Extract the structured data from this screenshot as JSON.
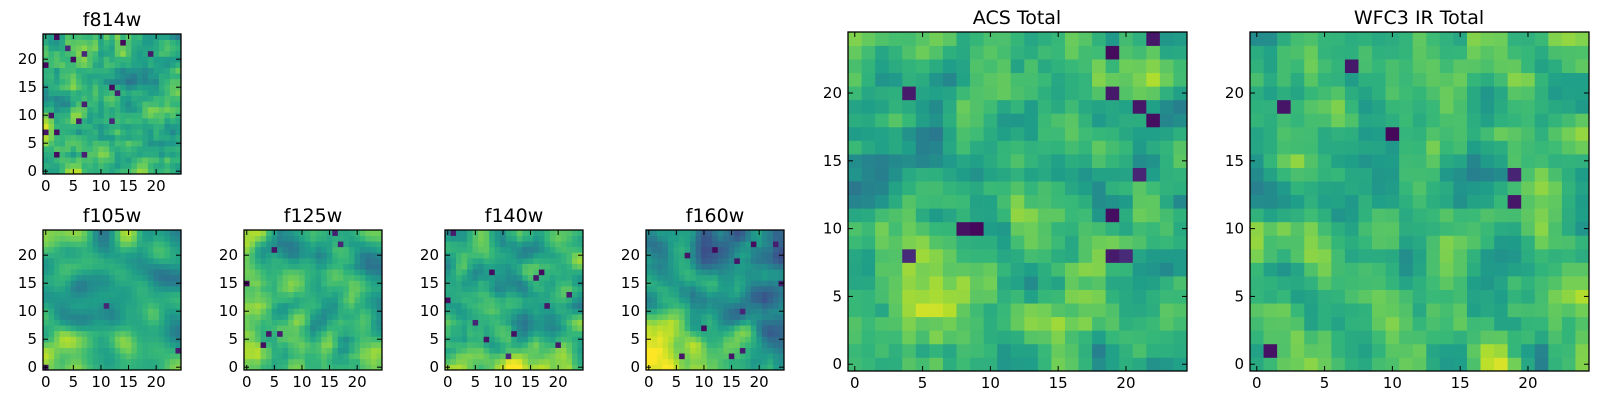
{
  "chart_data": [
    {
      "type": "heatmap",
      "id": "f814w",
      "title": "f814w",
      "x_ticks": [
        "0",
        "5",
        "10",
        "15",
        "20"
      ],
      "y_ticks": [
        "0",
        "5",
        "10",
        "15",
        "20"
      ],
      "xlim": [
        -0.5,
        24.5
      ],
      "ylim": [
        -0.5,
        24.5
      ],
      "grid_size": 25,
      "colormap": "viridis",
      "seed": 11,
      "smoothing": 0.25,
      "bottom_left_glow": 0.25,
      "dark_cells": 0.04
    },
    {
      "type": "heatmap",
      "id": "f105w",
      "title": "f105w",
      "x_ticks": [
        "0",
        "5",
        "10",
        "15",
        "20"
      ],
      "y_ticks": [
        "0",
        "5",
        "10",
        "15",
        "20"
      ],
      "xlim": [
        -0.5,
        24.5
      ],
      "ylim": [
        -0.5,
        24.5
      ],
      "grid_size": 25,
      "colormap": "viridis",
      "seed": 23,
      "smoothing": 0.75,
      "bottom_left_glow": 0.4,
      "dark_cells": 0.004
    },
    {
      "type": "heatmap",
      "id": "f125w",
      "title": "f125w",
      "x_ticks": [
        "0",
        "5",
        "10",
        "15",
        "20"
      ],
      "y_ticks": [
        "0",
        "5",
        "10",
        "15",
        "20"
      ],
      "xlim": [
        -0.5,
        24.5
      ],
      "ylim": [
        -0.5,
        24.5
      ],
      "grid_size": 25,
      "colormap": "viridis",
      "seed": 37,
      "smoothing": 0.6,
      "bottom_left_glow": 0.3,
      "dark_cells": 0.01
    },
    {
      "type": "heatmap",
      "id": "f140w",
      "title": "f140w",
      "x_ticks": [
        "0",
        "5",
        "10",
        "15",
        "20"
      ],
      "y_ticks": [
        "0",
        "5",
        "10",
        "15",
        "20"
      ],
      "xlim": [
        -0.5,
        24.5
      ],
      "ylim": [
        -0.5,
        24.5
      ],
      "grid_size": 25,
      "colormap": "viridis",
      "seed": 41,
      "smoothing": 0.55,
      "bottom_left_glow": 0.4,
      "dark_cells": 0.015
    },
    {
      "type": "heatmap",
      "id": "f160w",
      "title": "f160w",
      "x_ticks": [
        "0",
        "5",
        "10",
        "15",
        "20"
      ],
      "y_ticks": [
        "0",
        "5",
        "10",
        "15",
        "20"
      ],
      "xlim": [
        -0.5,
        24.5
      ],
      "ylim": [
        -0.5,
        24.5
      ],
      "grid_size": 25,
      "colormap": "viridis",
      "seed": 53,
      "smoothing": 0.6,
      "bottom_left_glow": 0.7,
      "dark_cells": 0.02,
      "offset": -0.15
    },
    {
      "type": "heatmap",
      "id": "acs-total",
      "title": "ACS Total",
      "x_ticks": [
        "0",
        "5",
        "10",
        "15",
        "20"
      ],
      "y_ticks": [
        "0",
        "5",
        "10",
        "15",
        "20"
      ],
      "xlim": [
        -0.5,
        24.5
      ],
      "ylim": [
        -0.5,
        24.5
      ],
      "grid_size": 25,
      "colormap": "viridis",
      "seed": 67,
      "smoothing": 0.3,
      "bottom_left_glow": 0.2,
      "dark_cells": 0.02
    },
    {
      "type": "heatmap",
      "id": "wfc3-ir-total",
      "title": "WFC3 IR Total",
      "x_ticks": [
        "0",
        "5",
        "10",
        "15",
        "20"
      ],
      "y_ticks": [
        "0",
        "5",
        "10",
        "15",
        "20"
      ],
      "xlim": [
        -0.5,
        24.5
      ],
      "ylim": [
        -0.5,
        24.5
      ],
      "grid_size": 25,
      "colormap": "viridis",
      "seed": 79,
      "smoothing": 0.3,
      "bottom_left_glow": 0.2,
      "dark_cells": 0.02
    }
  ]
}
